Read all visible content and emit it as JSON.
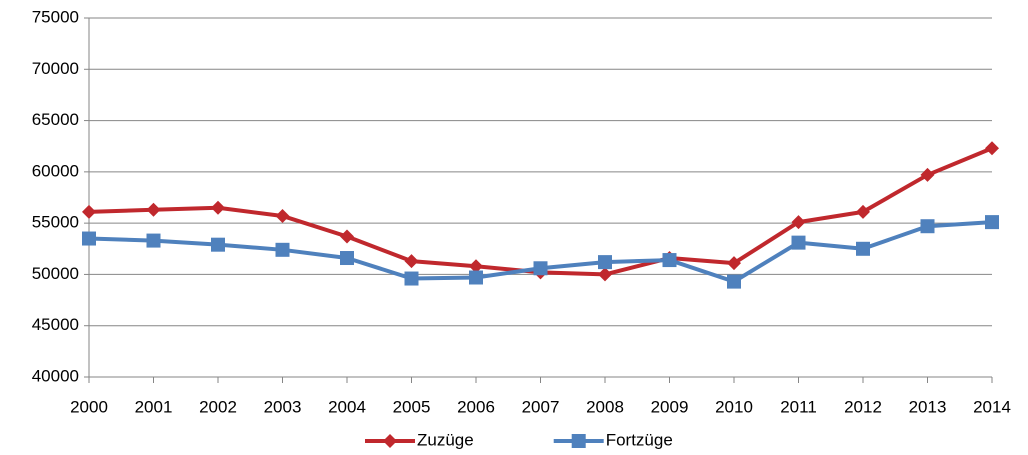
{
  "chart_data": {
    "type": "line",
    "x": [
      2000,
      2001,
      2002,
      2003,
      2004,
      2005,
      2006,
      2007,
      2008,
      2009,
      2010,
      2011,
      2012,
      2013,
      2014
    ],
    "series": [
      {
        "name": "Zuzüge",
        "color": "#c0282d",
        "marker": "diamond",
        "values": [
          56100,
          56300,
          56500,
          55700,
          53700,
          51300,
          50800,
          50200,
          50000,
          51600,
          51100,
          55100,
          56100,
          59700,
          62300
        ]
      },
      {
        "name": "Fortzüge",
        "color": "#4f81bd",
        "marker": "square",
        "values": [
          53500,
          53300,
          52900,
          52400,
          51600,
          49600,
          49700,
          50600,
          51200,
          51400,
          49300,
          53100,
          52500,
          54700,
          55100
        ]
      }
    ],
    "xlim": [
      2000,
      2014
    ],
    "xticks": [
      2000,
      2001,
      2002,
      2003,
      2004,
      2005,
      2006,
      2007,
      2008,
      2009,
      2010,
      2011,
      2012,
      2013,
      2014
    ],
    "ylim": [
      40000,
      75000
    ],
    "yticks": [
      40000,
      45000,
      50000,
      55000,
      60000,
      65000,
      70000,
      75000
    ],
    "grid": true,
    "legend": "bottom"
  }
}
